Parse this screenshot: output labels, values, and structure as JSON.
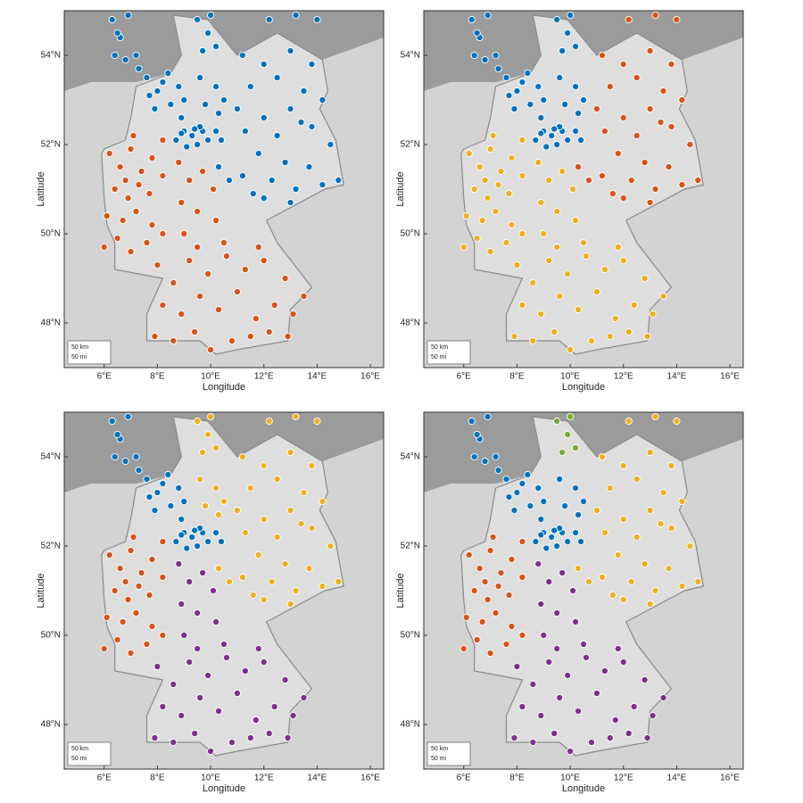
{
  "stations": {
    "lon": [
      6.3,
      6.6,
      6.9,
      6.4,
      6.8,
      7.2,
      6.5,
      7.3,
      7.6,
      8.0,
      8.4,
      8.8,
      7.9,
      8.5,
      9.0,
      8.2,
      8.9,
      7.7,
      9.5,
      9.9,
      10.2,
      9.7,
      10.0,
      9.6,
      10.2,
      9.8,
      10.5,
      10.3,
      8.7,
      9.0,
      9.3,
      9.5,
      9.7,
      9.9,
      10.2,
      9.1,
      8.9,
      9.6,
      10.4,
      9.4,
      12.2,
      13.2,
      14.0,
      11.2,
      12.0,
      13.0,
      13.8,
      11.5,
      12.5,
      13.5,
      14.2,
      11.0,
      12.0,
      13.0,
      13.8,
      11.3,
      12.5,
      13.4,
      14.5,
      11.8,
      12.8,
      13.7,
      14.8,
      11.2,
      12.3,
      13.2,
      14.2,
      12.0,
      13.0,
      11.6,
      10.3,
      10.7,
      6.2,
      6.6,
      7.0,
      7.4,
      7.8,
      8.2,
      6.4,
      6.9,
      7.3,
      7.7,
      8.2,
      6.1,
      6.7,
      7.2,
      7.8,
      6.0,
      6.5,
      7.0,
      7.6,
      8.2,
      7.1,
      6.8,
      8.8,
      9.2,
      9.7,
      10.1,
      8.9,
      9.5,
      10.2,
      9.0,
      8.0,
      8.6,
      9.2,
      9.9,
      10.6,
      11.3,
      12.0,
      12.8,
      13.5,
      8.2,
      8.9,
      9.6,
      10.3,
      11.0,
      11.7,
      12.4,
      13.1,
      7.9,
      8.6,
      9.4,
      10.0,
      10.8,
      11.5,
      12.2,
      12.9,
      10.5,
      11.8,
      9.5
    ],
    "lat": [
      54.8,
      54.4,
      54.9,
      54.0,
      53.9,
      54.0,
      54.5,
      53.7,
      53.5,
      53.2,
      53.6,
      53.3,
      52.8,
      52.9,
      53.0,
      53.4,
      52.6,
      53.1,
      54.8,
      54.5,
      54.2,
      54.1,
      54.9,
      53.5,
      53.3,
      52.9,
      53.0,
      52.7,
      52.1,
      52.3,
      52.2,
      52.0,
      52.3,
      52.1,
      52.3,
      51.95,
      52.25,
      52.4,
      52.1,
      52.35,
      54.8,
      54.9,
      54.8,
      54.0,
      53.8,
      54.1,
      53.8,
      53.3,
      53.5,
      53.2,
      53.0,
      52.8,
      52.6,
      52.8,
      52.4,
      52.3,
      52.2,
      52.5,
      52.0,
      51.8,
      51.6,
      51.5,
      51.2,
      51.3,
      51.2,
      51.0,
      51.1,
      50.8,
      50.7,
      50.9,
      51.5,
      51.2,
      51.8,
      51.5,
      51.9,
      51.4,
      51.7,
      52.1,
      51.0,
      50.8,
      51.1,
      50.9,
      51.3,
      50.4,
      50.3,
      50.5,
      50.2,
      49.7,
      49.9,
      49.6,
      49.8,
      50.0,
      52.2,
      51.2,
      51.6,
      51.2,
      51.4,
      51.0,
      50.7,
      50.5,
      50.3,
      50.0,
      49.3,
      48.9,
      49.4,
      49.1,
      49.5,
      49.2,
      49.4,
      49.0,
      48.6,
      48.4,
      48.2,
      48.6,
      48.3,
      48.7,
      48.1,
      48.4,
      48.2,
      47.7,
      47.6,
      47.8,
      47.4,
      47.6,
      47.7,
      47.8,
      47.7,
      49.8,
      49.7,
      49.7
    ]
  },
  "chart_data": [
    {
      "type": "scatter",
      "xlabel": "Longitude",
      "ylabel": "Latitude",
      "xlim": [
        4.5,
        16.5
      ],
      "ylim": [
        47,
        55
      ],
      "xticks": [
        {
          "value": 6,
          "label": "6°E"
        },
        {
          "value": 8,
          "label": "8°E"
        },
        {
          "value": 10,
          "label": "10°E"
        },
        {
          "value": 12,
          "label": "12°E"
        },
        {
          "value": 14,
          "label": "14°E"
        },
        {
          "value": 16,
          "label": "16°E"
        }
      ],
      "yticks": [
        {
          "value": 48,
          "label": "48°N"
        },
        {
          "value": 50,
          "label": "50°N"
        },
        {
          "value": 52,
          "label": "52°N"
        },
        {
          "value": 54,
          "label": "54°N"
        }
      ],
      "scale_labels": [
        "50 km",
        "50 mi"
      ],
      "colors": [
        "#0072bd",
        "#d95319"
      ],
      "cluster": [
        0,
        0,
        0,
        0,
        0,
        0,
        0,
        0,
        0,
        0,
        0,
        0,
        0,
        0,
        0,
        0,
        0,
        0,
        0,
        0,
        0,
        0,
        0,
        0,
        0,
        0,
        0,
        0,
        0,
        0,
        0,
        0,
        0,
        0,
        0,
        0,
        0,
        0,
        0,
        0,
        0,
        0,
        0,
        0,
        0,
        0,
        0,
        0,
        0,
        0,
        0,
        0,
        0,
        0,
        0,
        0,
        0,
        0,
        0,
        0,
        0,
        0,
        0,
        0,
        0,
        0,
        0,
        0,
        0,
        0,
        0,
        0,
        1,
        1,
        1,
        1,
        1,
        1,
        1,
        1,
        1,
        1,
        1,
        1,
        1,
        1,
        1,
        1,
        1,
        1,
        1,
        1,
        1,
        1,
        1,
        1,
        1,
        1,
        1,
        1,
        1,
        1,
        1,
        1,
        1,
        1,
        1,
        1,
        1,
        1,
        1,
        1,
        1,
        1,
        1,
        1,
        1,
        1,
        1,
        1,
        1,
        1,
        1,
        1,
        1,
        1,
        1,
        1,
        1,
        1
      ]
    },
    {
      "type": "scatter",
      "xlabel": "Longitude",
      "ylabel": "Latitude",
      "xlim": [
        4.5,
        16.5
      ],
      "ylim": [
        47,
        55
      ],
      "xticks": [
        {
          "value": 6,
          "label": "6°E"
        },
        {
          "value": 8,
          "label": "8°E"
        },
        {
          "value": 10,
          "label": "10°E"
        },
        {
          "value": 12,
          "label": "12°E"
        },
        {
          "value": 14,
          "label": "14°E"
        },
        {
          "value": 16,
          "label": "16°E"
        }
      ],
      "yticks": [
        {
          "value": 48,
          "label": "48°N"
        },
        {
          "value": 50,
          "label": "50°N"
        },
        {
          "value": 52,
          "label": "52°N"
        },
        {
          "value": 54,
          "label": "54°N"
        }
      ],
      "scale_labels": [
        "50 km",
        "50 mi"
      ],
      "colors": [
        "#0072bd",
        "#d95319",
        "#edb120"
      ],
      "cluster": [
        0,
        0,
        0,
        0,
        0,
        0,
        0,
        0,
        0,
        0,
        0,
        0,
        0,
        0,
        0,
        0,
        0,
        0,
        0,
        0,
        0,
        0,
        0,
        0,
        0,
        0,
        0,
        0,
        0,
        0,
        0,
        0,
        0,
        0,
        0,
        0,
        0,
        0,
        0,
        0,
        1,
        1,
        1,
        1,
        1,
        1,
        1,
        1,
        1,
        1,
        1,
        1,
        1,
        1,
        1,
        1,
        1,
        1,
        1,
        1,
        1,
        1,
        1,
        1,
        1,
        1,
        1,
        1,
        1,
        1,
        1,
        1,
        2,
        2,
        2,
        2,
        2,
        2,
        2,
        2,
        2,
        2,
        2,
        2,
        2,
        2,
        2,
        2,
        2,
        2,
        2,
        2,
        2,
        2,
        2,
        2,
        2,
        2,
        2,
        2,
        2,
        2,
        2,
        2,
        2,
        2,
        2,
        2,
        2,
        2,
        2,
        2,
        2,
        2,
        2,
        2,
        2,
        2,
        2,
        2,
        2,
        2,
        2,
        2,
        2,
        2,
        2,
        2,
        2,
        2
      ]
    },
    {
      "type": "scatter",
      "xlabel": "Longitude",
      "ylabel": "Latitude",
      "xlim": [
        4.5,
        16.5
      ],
      "ylim": [
        47,
        55
      ],
      "xticks": [
        {
          "value": 6,
          "label": "6°E"
        },
        {
          "value": 8,
          "label": "8°E"
        },
        {
          "value": 10,
          "label": "10°E"
        },
        {
          "value": 12,
          "label": "12°E"
        },
        {
          "value": 14,
          "label": "14°E"
        },
        {
          "value": 16,
          "label": "16°E"
        }
      ],
      "yticks": [
        {
          "value": 48,
          "label": "48°N"
        },
        {
          "value": 50,
          "label": "50°N"
        },
        {
          "value": 52,
          "label": "52°N"
        },
        {
          "value": 54,
          "label": "54°N"
        }
      ],
      "scale_labels": [
        "50 km",
        "50 mi"
      ],
      "colors": [
        "#0072bd",
        "#d95319",
        "#edb120",
        "#7e2f8e"
      ],
      "cluster": [
        0,
        0,
        0,
        0,
        0,
        0,
        0,
        0,
        0,
        0,
        0,
        0,
        0,
        0,
        0,
        0,
        0,
        0,
        2,
        2,
        2,
        2,
        2,
        2,
        2,
        2,
        2,
        2,
        0,
        0,
        0,
        0,
        0,
        0,
        0,
        0,
        0,
        0,
        0,
        0,
        2,
        2,
        2,
        2,
        2,
        2,
        2,
        2,
        2,
        2,
        2,
        2,
        2,
        2,
        2,
        2,
        2,
        2,
        2,
        2,
        2,
        2,
        2,
        2,
        2,
        2,
        2,
        2,
        2,
        2,
        2,
        2,
        1,
        1,
        1,
        1,
        1,
        1,
        1,
        1,
        1,
        1,
        1,
        1,
        1,
        1,
        1,
        1,
        1,
        1,
        1,
        1,
        1,
        1,
        3,
        3,
        3,
        3,
        3,
        3,
        3,
        3,
        3,
        3,
        3,
        3,
        3,
        3,
        3,
        3,
        3,
        3,
        3,
        3,
        3,
        3,
        3,
        3,
        3,
        3,
        3,
        3,
        3,
        3,
        3,
        3,
        3,
        3,
        3,
        3
      ]
    },
    {
      "type": "scatter",
      "xlabel": "Longitude",
      "ylabel": "Latitude",
      "xlim": [
        4.5,
        16.5
      ],
      "ylim": [
        47,
        55
      ],
      "xticks": [
        {
          "value": 6,
          "label": "6°E"
        },
        {
          "value": 8,
          "label": "8°E"
        },
        {
          "value": 10,
          "label": "10°E"
        },
        {
          "value": 12,
          "label": "12°E"
        },
        {
          "value": 14,
          "label": "14°E"
        },
        {
          "value": 16,
          "label": "16°E"
        }
      ],
      "yticks": [
        {
          "value": 48,
          "label": "48°N"
        },
        {
          "value": 50,
          "label": "50°N"
        },
        {
          "value": 52,
          "label": "52°N"
        },
        {
          "value": 54,
          "label": "54°N"
        }
      ],
      "scale_labels": [
        "50 km",
        "50 mi"
      ],
      "colors": [
        "#0072bd",
        "#d95319",
        "#edb120",
        "#7e2f8e",
        "#77ac30"
      ],
      "cluster": [
        0,
        0,
        0,
        0,
        0,
        0,
        0,
        0,
        0,
        0,
        0,
        0,
        0,
        0,
        0,
        0,
        0,
        0,
        4,
        4,
        4,
        4,
        4,
        0,
        0,
        0,
        0,
        0,
        0,
        0,
        0,
        0,
        0,
        0,
        0,
        0,
        0,
        0,
        0,
        0,
        2,
        2,
        2,
        2,
        2,
        2,
        2,
        2,
        2,
        2,
        2,
        2,
        2,
        2,
        2,
        2,
        2,
        2,
        2,
        2,
        2,
        2,
        2,
        2,
        2,
        2,
        2,
        2,
        2,
        2,
        2,
        2,
        1,
        1,
        1,
        1,
        1,
        1,
        1,
        1,
        1,
        1,
        1,
        1,
        1,
        1,
        1,
        1,
        1,
        1,
        1,
        1,
        1,
        1,
        3,
        3,
        3,
        3,
        3,
        3,
        3,
        3,
        3,
        3,
        3,
        3,
        3,
        3,
        3,
        3,
        3,
        3,
        3,
        3,
        3,
        3,
        3,
        3,
        3,
        3,
        3,
        3,
        3,
        3,
        3,
        3,
        3,
        3,
        3,
        3
      ]
    }
  ]
}
